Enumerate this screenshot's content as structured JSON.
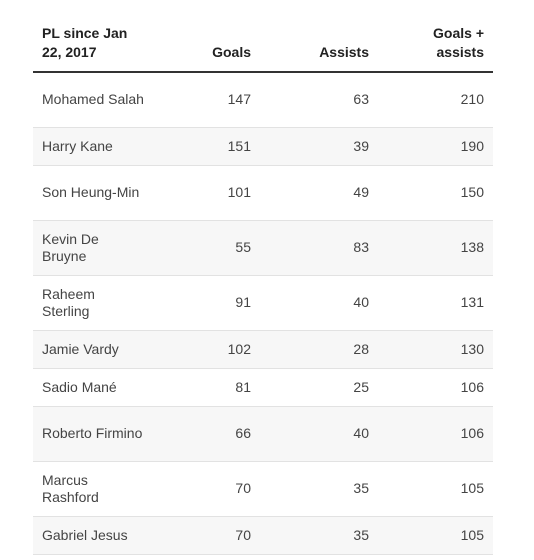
{
  "chart_data": {
    "type": "table",
    "columns": [
      "PL since Jan 22, 2017",
      "Goals",
      "Assists",
      "Goals + assists"
    ],
    "rows": [
      [
        "Mohamed Salah",
        "147",
        "63",
        "210"
      ],
      [
        "Harry Kane",
        "151",
        "39",
        "190"
      ],
      [
        "Son Heung-Min",
        "101",
        "49",
        "150"
      ],
      [
        "Kevin De Bruyne",
        "55",
        "83",
        "138"
      ],
      [
        "Raheem Sterling",
        "91",
        "40",
        "131"
      ],
      [
        "Jamie Vardy",
        "102",
        "28",
        "130"
      ],
      [
        "Sadio Mané",
        "81",
        "25",
        "106"
      ],
      [
        "Roberto Firmino",
        "66",
        "40",
        "106"
      ],
      [
        "Marcus Rashford",
        "70",
        "35",
        "105"
      ],
      [
        "Gabriel Jesus",
        "70",
        "35",
        "105"
      ]
    ]
  }
}
